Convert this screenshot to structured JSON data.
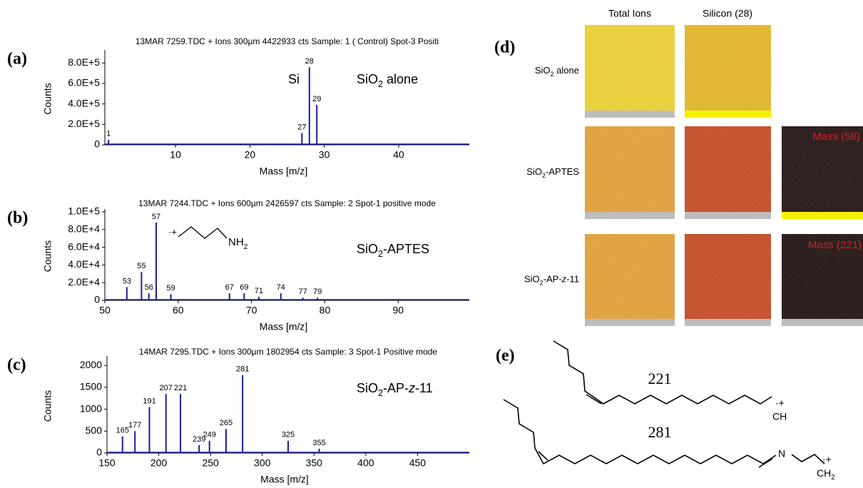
{
  "chart_data": [
    {
      "type": "bar",
      "panel": "(a)",
      "title": "13MAR 7259.TDC + Ions 300µm 4422933 cts Sample: 1 ( Control) Spot-3 Positi",
      "xlabel": "Mass [m/z]",
      "ylabel": "Counts",
      "annotation": "Si",
      "label": [
        {
          "text": "SiO"
        },
        {
          "text": "2",
          "style": "sub"
        },
        {
          "text": " alone"
        }
      ],
      "x": [
        1,
        27,
        28,
        29
      ],
      "values": [
        50000,
        115000,
        760000,
        390000
      ],
      "color": "#1c1ca8",
      "xlim": [
        0.5,
        49.5
      ],
      "ylim": [
        0,
        900000
      ],
      "xticks": [
        10,
        20,
        30,
        40
      ],
      "yticks": [
        0,
        {
          "value": 200000,
          "label": "2.0E+5"
        },
        {
          "value": 400000,
          "label": "4.0E+5"
        },
        {
          "value": 600000,
          "label": "6.0E+5"
        },
        {
          "value": 800000,
          "label": "8.0E+5"
        }
      ]
    },
    {
      "type": "bar",
      "panel": "(b)",
      "title": "13MAR 7244.TDC + Ions 600µm 2426597 cts Sample: 2 Spot-1 positive mode",
      "xlabel": "Mass [m/z]",
      "ylabel": "Counts",
      "label": [
        {
          "text": "SiO"
        },
        {
          "text": "2",
          "style": "sub"
        },
        {
          "text": "-APTES"
        }
      ],
      "structure": {
        "radical": "·+",
        "group": [
          {
            "text": "NH"
          },
          {
            "text": "2",
            "style": "sub"
          }
        ]
      },
      "x": [
        53,
        55,
        56,
        57,
        59,
        67,
        69,
        71,
        74,
        77,
        79
      ],
      "values": [
        15000,
        32000,
        8000,
        88000,
        7000,
        8000,
        8000,
        4000,
        8000,
        3000,
        3000
      ],
      "color": "#1c1ca8",
      "xlim": [
        50,
        99.7
      ],
      "ylim": [
        0,
        100000
      ],
      "xticks": [
        50,
        60,
        70,
        80,
        90
      ],
      "yticks": [
        0,
        {
          "value": 20000,
          "label": "2.0E+4"
        },
        {
          "value": 40000,
          "label": "4.0E+4"
        },
        {
          "value": 60000,
          "label": "6.0E+4"
        },
        {
          "value": 80000,
          "label": "8.0E+4"
        },
        {
          "value": 100000,
          "label": "1.0E+5"
        }
      ]
    },
    {
      "type": "bar",
      "panel": "(c)",
      "title": "14MAR 7295.TDC + Ions 300µm 1802954 cts Sample: 3 Spot-1 Positive mode",
      "xlabel": "Mass [m/z]",
      "ylabel": "Counts",
      "label": [
        {
          "text": "SiO"
        },
        {
          "text": "2",
          "style": "sub"
        },
        {
          "text": "-AP-"
        },
        {
          "text": "z",
          "style": "italic"
        },
        {
          "text": "-11"
        }
      ],
      "x": [
        165,
        177,
        191,
        207,
        221,
        239,
        249,
        265,
        281,
        325,
        355
      ],
      "values": [
        380,
        500,
        1050,
        1350,
        1350,
        180,
        280,
        550,
        1780,
        280,
        100
      ],
      "color": "#1c1ca8",
      "xlim": [
        150,
        500
      ],
      "ylim": [
        0,
        2150
      ],
      "xticks": [
        150,
        200,
        250,
        300,
        350,
        400,
        450
      ],
      "yticks": [
        0,
        500,
        1000,
        1500,
        2000
      ]
    }
  ],
  "panel_d": {
    "panel": "(d)",
    "columns": [
      "Total Ions",
      "Silicon (28)"
    ],
    "rows": [
      [
        {
          "text": "SiO"
        },
        {
          "text": "2",
          "style": "sub"
        },
        {
          "text": " alone"
        }
      ],
      [
        {
          "text": "SiO"
        },
        {
          "text": "2",
          "style": "sub"
        },
        {
          "text": "-APTES"
        }
      ],
      [
        {
          "text": "SiO"
        },
        {
          "text": "2",
          "style": "sub"
        },
        {
          "text": "-AP-"
        },
        {
          "text": "z",
          "style": "italic"
        },
        {
          "text": "-11"
        }
      ]
    ],
    "overlays": [
      "Mass (58)",
      "Mass (221)"
    ]
  },
  "panel_e": {
    "panel": "(e)",
    "masses": [
      "221",
      "281"
    ],
    "radical": "·+",
    "end1": "CH",
    "nitrogen": "N",
    "end2": [
      {
        "text": "CH"
      },
      {
        "text": "2",
        "style": "sub"
      }
    ]
  }
}
